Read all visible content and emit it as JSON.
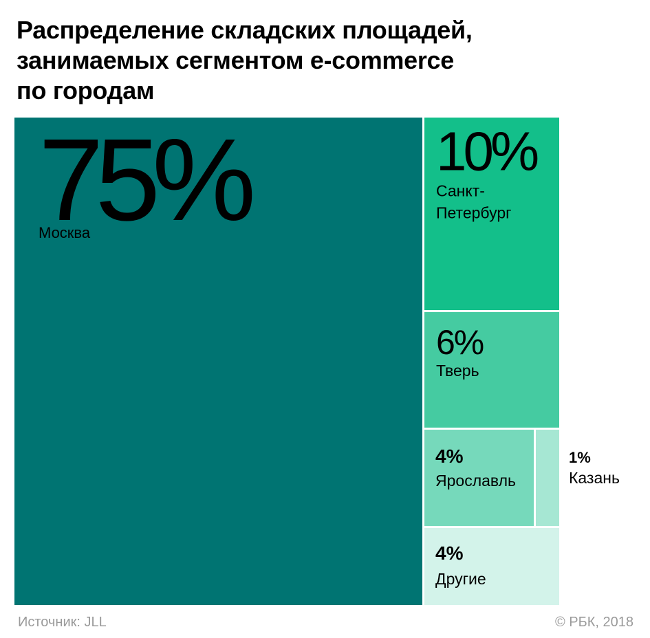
{
  "title": [
    "Распределение складских площадей,",
    "занимаемых сегментом e-commerce",
    "по городам"
  ],
  "source": "Источник: JLL",
  "copyright": "© РБК, 2018",
  "chart_data": {
    "type": "treemap",
    "unit": "%",
    "items": [
      {
        "label": [
          "Москва"
        ],
        "value": 75,
        "value_label": "75%",
        "color": "#007472"
      },
      {
        "label": [
          "Санкт-",
          "Петербург"
        ],
        "value": 10,
        "value_label": "10%",
        "color": "#13bf8a"
      },
      {
        "label": [
          "Тверь"
        ],
        "value": 6,
        "value_label": "6%",
        "color": "#45cba1"
      },
      {
        "label": [
          "Ярославль"
        ],
        "value": 4,
        "value_label": "4%",
        "color": "#76d9bb"
      },
      {
        "label": [
          "Казань"
        ],
        "value": 1,
        "value_label": "1%",
        "color": "#a6e7d3"
      },
      {
        "label": [
          "Другие"
        ],
        "value": 4,
        "value_label": "4%",
        "color": "#d3f3ea"
      }
    ]
  }
}
